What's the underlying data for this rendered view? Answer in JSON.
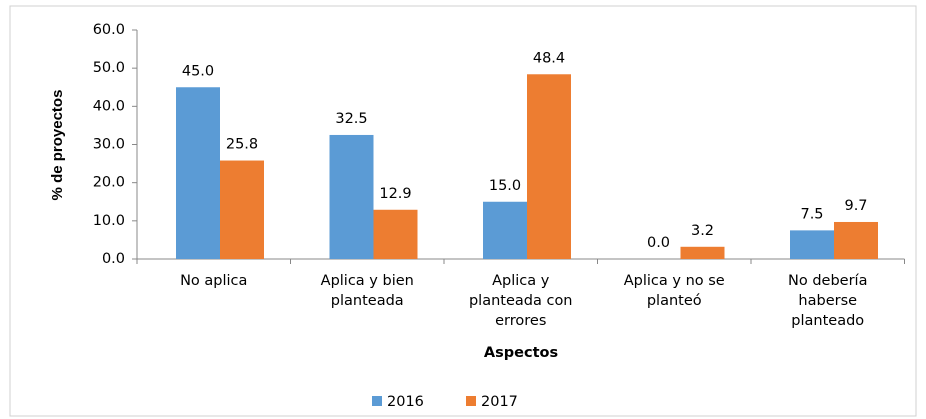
{
  "chart_data": {
    "type": "bar",
    "categories": [
      [
        "No aplica"
      ],
      [
        "Aplica y bien",
        "planteada"
      ],
      [
        "Aplica y",
        "planteada con",
        "errores"
      ],
      [
        "Aplica y no se",
        "planteó"
      ],
      [
        "No debería",
        "haberse",
        "planteado"
      ]
    ],
    "series": [
      {
        "name": "2016",
        "color": "#5b9bd5",
        "values": [
          45.0,
          32.5,
          15.0,
          0.0,
          7.5
        ],
        "value_labels": [
          "45.0",
          "32.5",
          "15.0",
          "0.0",
          "7.5"
        ]
      },
      {
        "name": "2017",
        "color": "#ed7d31",
        "values": [
          25.8,
          12.9,
          48.4,
          3.2,
          9.7
        ],
        "value_labels": [
          "25.8",
          "12.9",
          "48.4",
          "3.2",
          "9.7"
        ]
      }
    ],
    "ylabel": "% de proyectos",
    "xlabel": "Aspectos",
    "ylim": [
      0,
      60
    ],
    "yticks": [
      {
        "value": 0,
        "label": "0.0"
      },
      {
        "value": 10,
        "label": "10.0"
      },
      {
        "value": 20,
        "label": "20.0"
      },
      {
        "value": 30,
        "label": "30.0"
      },
      {
        "value": 40,
        "label": "40.0"
      },
      {
        "value": 50,
        "label": "50.0"
      },
      {
        "value": 60,
        "label": "60.0"
      }
    ],
    "legend": "bottom"
  }
}
